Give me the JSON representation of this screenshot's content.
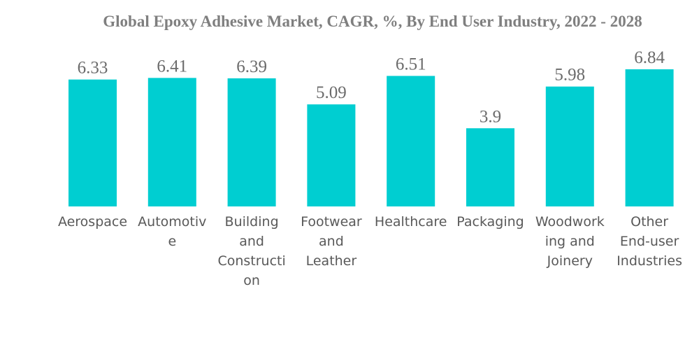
{
  "chart_data": {
    "type": "bar",
    "title": "Global Epoxy Adhesive Market, CAGR, %, By End User Industry, 2022 - 2028",
    "xlabel": "",
    "ylabel": "",
    "categories": [
      "Aerospace",
      "Automotive",
      "Building and Construction",
      "Footwear and Leather",
      "Healthcare",
      "Packaging",
      "Woodworking and Joinery",
      "Other End-user Industries"
    ],
    "category_label_lines": [
      [
        "Aerospace"
      ],
      [
        "Automotiv",
        "e"
      ],
      [
        "Building",
        "and",
        "Constructi",
        "on"
      ],
      [
        "Footwear",
        "and",
        "Leather"
      ],
      [
        "Healthcare"
      ],
      [
        "Packaging"
      ],
      [
        "Woodwork",
        "ing and",
        "Joinery"
      ],
      [
        "Other",
        "End-user",
        "Industries"
      ]
    ],
    "values": [
      6.33,
      6.41,
      6.39,
      5.09,
      6.51,
      3.9,
      5.98,
      6.84
    ],
    "data_labels": [
      "6.33",
      "6.41",
      "6.39",
      "5.09",
      "6.51",
      "3.9",
      "5.98",
      "6.84"
    ],
    "ylim": [
      0,
      6.84
    ],
    "grid": false,
    "legend": "none",
    "bar_color": "#00ced1"
  }
}
